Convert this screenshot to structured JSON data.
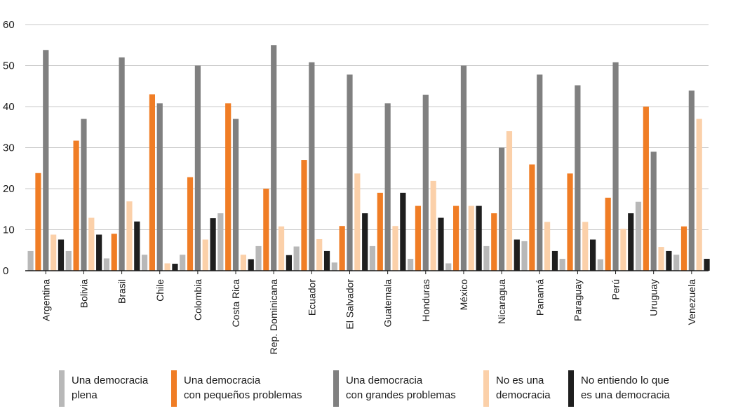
{
  "chart_data": {
    "type": "bar",
    "title": "",
    "xlabel": "",
    "ylabel": "",
    "ylim": [
      0,
      60
    ],
    "yticks": [
      0,
      10,
      20,
      30,
      40,
      50,
      60
    ],
    "grid": true,
    "legend_position": "bottom",
    "categories": [
      "Argentina",
      "Bolivia",
      "Brasil",
      "Chile",
      "Colombia",
      "Costa Rica",
      "Rep. Dominicana",
      "Ecuador",
      "El Salvador",
      "Guatemala",
      "Honduras",
      "México",
      "Nicaragua",
      "Panamá",
      "Paraguay",
      "Perú",
      "Uruguay",
      "Venezuela"
    ],
    "series": [
      {
        "name": "Una democracia plena",
        "label_lines": [
          "Una democracia",
          "plena"
        ],
        "color": "#b8b8b8",
        "values": [
          4.8,
          4.8,
          3,
          3.9,
          3.9,
          14,
          6,
          5.9,
          2,
          6,
          2.9,
          1.8,
          6,
          7.2,
          2.9,
          2.8,
          16.8,
          3.9
        ]
      },
      {
        "name": "Una democracia con pequeños problemas",
        "label_lines": [
          "Una democracia",
          "con pequeños problemas"
        ],
        "color": "#f07d25",
        "values": [
          23.8,
          31.7,
          9,
          43,
          22.8,
          40.8,
          20,
          27,
          10.9,
          19,
          15.8,
          15.8,
          14,
          25.9,
          23.7,
          17.8,
          40,
          10.8
        ]
      },
      {
        "name": "Una democracia con grandes problemas",
        "label_lines": [
          "Una democracia",
          "con grandes problemas"
        ],
        "color": "#808080",
        "values": [
          53.8,
          37,
          52,
          40.8,
          50,
          37,
          55,
          50.8,
          47.8,
          40.8,
          42.9,
          50,
          30,
          47.8,
          45.2,
          50.8,
          29,
          43.9
        ]
      },
      {
        "name": "No es una democracia",
        "label_lines": [
          "No es una",
          "democracia"
        ],
        "color": "#fbd0a9",
        "values": [
          8.8,
          12.9,
          16.9,
          1.8,
          7.6,
          3.9,
          10.8,
          7.7,
          23.7,
          10.9,
          21.9,
          15.8,
          34,
          11.9,
          11.9,
          10.2,
          5.8,
          37
        ]
      },
      {
        "name": "No entiendo lo que es una democracia",
        "label_lines": [
          "No entiendo lo que",
          "es una democracia"
        ],
        "color": "#1e1e1e",
        "values": [
          7.6,
          8.8,
          12,
          1.7,
          12.8,
          2.8,
          3.8,
          4.8,
          14,
          19,
          12.9,
          15.8,
          7.6,
          4.8,
          7.6,
          14,
          4.8,
          2.9
        ]
      }
    ]
  }
}
